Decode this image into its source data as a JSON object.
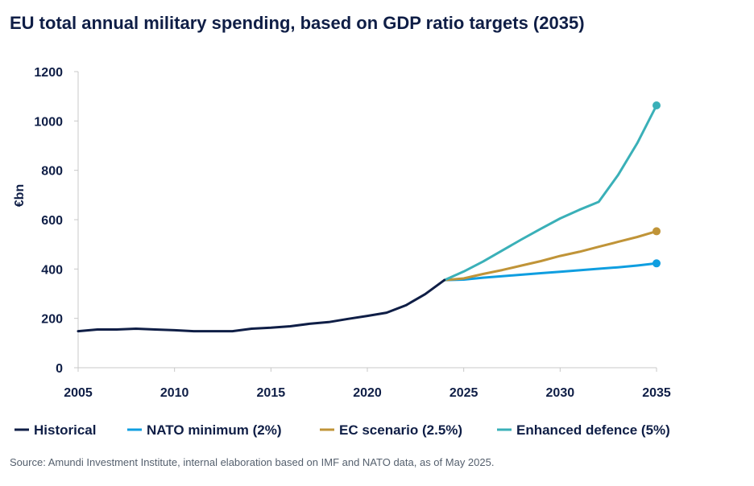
{
  "title": "EU total annual military spending, based on GDP ratio targets (2035)",
  "source": "Source: Amundi Investment Institute, internal elaboration based on IMF and NATO data, as of May 2025.",
  "chart_data": {
    "type": "line",
    "ylabel": "€bn",
    "xlabel": "",
    "xlim": [
      2005,
      2035
    ],
    "ylim": [
      0,
      1200
    ],
    "xticks": [
      2005,
      2010,
      2015,
      2020,
      2025,
      2030,
      2035
    ],
    "yticks": [
      0,
      200,
      400,
      600,
      800,
      1000,
      1200
    ],
    "legend_position": "bottom",
    "series": [
      {
        "name": "Historical",
        "color": "#0f1e46",
        "x": [
          2005,
          2006,
          2007,
          2008,
          2009,
          2010,
          2011,
          2012,
          2013,
          2014,
          2015,
          2016,
          2017,
          2018,
          2019,
          2020,
          2021,
          2022,
          2023,
          2024
        ],
        "values": [
          148,
          155,
          155,
          158,
          155,
          152,
          148,
          148,
          148,
          158,
          162,
          168,
          178,
          185,
          198,
          210,
          223,
          253,
          298,
          355
        ],
        "end_marker": false
      },
      {
        "name": "NATO minimum (2%)",
        "color": "#0f9ee0",
        "x": [
          2024,
          2025,
          2026,
          2027,
          2028,
          2029,
          2030,
          2031,
          2032,
          2033,
          2034,
          2035
        ],
        "values": [
          355,
          357,
          365,
          371,
          377,
          383,
          389,
          395,
          401,
          407,
          414,
          423
        ],
        "end_marker": true
      },
      {
        "name": "EC scenario (2.5%)",
        "color": "#c09438",
        "x": [
          2024,
          2025,
          2026,
          2027,
          2028,
          2029,
          2030,
          2031,
          2032,
          2033,
          2034,
          2035
        ],
        "values": [
          355,
          362,
          380,
          396,
          414,
          432,
          453,
          470,
          490,
          510,
          530,
          553
        ],
        "end_marker": true
      },
      {
        "name": "Enhanced defence (5%)",
        "color": "#3ab0b8",
        "x": [
          2024,
          2025,
          2026,
          2027,
          2028,
          2029,
          2030,
          2031,
          2032,
          2033,
          2034,
          2035
        ],
        "values": [
          355,
          390,
          430,
          475,
          520,
          563,
          605,
          640,
          672,
          780,
          910,
          1063
        ],
        "end_marker": true
      }
    ]
  }
}
